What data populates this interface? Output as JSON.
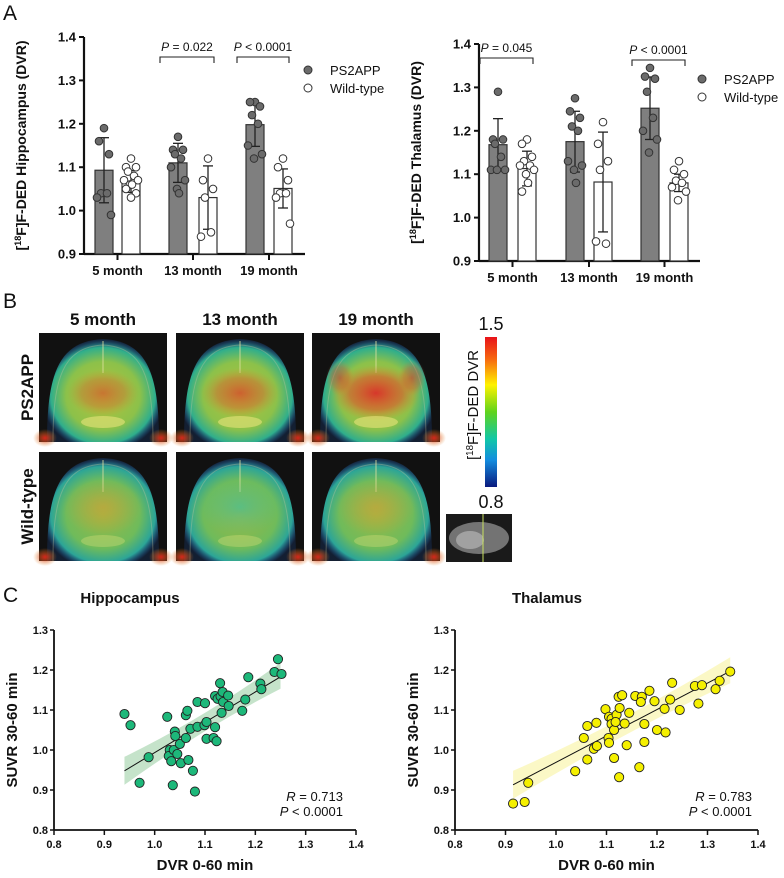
{
  "panel_labels": {
    "a": "A",
    "b": "B",
    "c": "C"
  },
  "chart_data": [
    {
      "type": "bar",
      "panel": "A",
      "ylabel_parts": [
        "[",
        "18",
        "F]F-DED Hippocampus (DVR)"
      ],
      "ylim": [
        0.9,
        1.4
      ],
      "yticks": [
        "0.9",
        "1.0",
        "1.1",
        "1.2",
        "1.3",
        "1.4"
      ],
      "categories": [
        "5 month",
        "13 month",
        "19 month"
      ],
      "legend": {
        "placement": "right",
        "entries": [
          "PS2APP",
          "Wild-type"
        ]
      },
      "series": [
        {
          "name": "PS2APP",
          "color": "#7f7f7f",
          "means": [
            1.093,
            1.11,
            1.198
          ],
          "sd": [
            0.075,
            0.045,
            0.05
          ],
          "points": [
            [
              1.19,
              1.16,
              1.13,
              1.04,
              1.04,
              1.03,
              0.99
            ],
            [
              1.17,
              1.14,
              1.14,
              1.13,
              1.12,
              1.1,
              1.07,
              1.05,
              1.04
            ],
            [
              1.25,
              1.25,
              1.24,
              1.22,
              1.2,
              1.15,
              1.13,
              1.12
            ]
          ]
        },
        {
          "name": "Wild-type",
          "color": "#ffffff",
          "means": [
            1.067,
            1.03,
            1.051
          ],
          "sd": [
            0.025,
            0.073,
            0.045
          ],
          "points": [
            [
              1.12,
              1.1,
              1.1,
              1.09,
              1.08,
              1.07,
              1.07,
              1.06,
              1.06,
              1.05,
              1.04,
              1.03
            ],
            [
              1.12,
              1.07,
              1.05,
              1.03,
              0.95,
              0.94
            ],
            [
              1.12,
              1.1,
              1.07,
              1.04,
              1.04,
              1.03,
              0.97
            ]
          ]
        }
      ],
      "annotations": [
        {
          "category_index": 1,
          "text": "P = 0.022"
        },
        {
          "category_index": 2,
          "text": "P < 0.0001"
        }
      ]
    },
    {
      "type": "bar",
      "panel": "A",
      "ylabel_parts": [
        "[",
        "18",
        "F]F-DED Thalamus (DVR)"
      ],
      "ylim": [
        0.9,
        1.4
      ],
      "yticks": [
        "0.9",
        "1.0",
        "1.1",
        "1.2",
        "1.3",
        "1.4"
      ],
      "categories": [
        "5 month",
        "13 month",
        "19 month"
      ],
      "legend": {
        "placement": "right",
        "entries": [
          "PS2APP",
          "Wild-type"
        ]
      },
      "series": [
        {
          "name": "PS2APP",
          "color": "#7f7f7f",
          "means": [
            1.168,
            1.175,
            1.252
          ],
          "sd": [
            0.06,
            0.07,
            0.072
          ],
          "points": [
            [
              1.29,
              1.18,
              1.18,
              1.17,
              1.14,
              1.11,
              1.11,
              1.11
            ],
            [
              1.275,
              1.245,
              1.23,
              1.21,
              1.2,
              1.13,
              1.12,
              1.11,
              1.08
            ],
            [
              1.345,
              1.325,
              1.32,
              1.29,
              1.23,
              1.2,
              1.18,
              1.15
            ]
          ]
        },
        {
          "name": "Wild-type",
          "color": "#ffffff",
          "means": [
            1.113,
            1.082,
            1.08
          ],
          "sd": [
            0.04,
            0.115,
            0.02
          ],
          "points": [
            [
              1.18,
              1.17,
              1.14,
              1.13,
              1.12,
              1.12,
              1.11,
              1.1,
              1.08,
              1.06
            ],
            [
              1.22,
              1.17,
              1.13,
              1.11,
              0.94,
              0.945
            ],
            [
              1.13,
              1.11,
              1.1,
              1.085,
              1.08,
              1.07,
              1.06,
              1.04
            ]
          ]
        }
      ],
      "annotations": [
        {
          "category_index": 0,
          "text": "P = 0.045"
        },
        {
          "category_index": 2,
          "text": "P < 0.0001"
        }
      ]
    },
    {
      "type": "scatter",
      "panel": "C",
      "title": "Hippocampus",
      "xlabel": "DVR 0-60 min",
      "ylabel": "SUVR 30-60 min",
      "xlim": [
        0.8,
        1.4
      ],
      "ylim": [
        0.8,
        1.3
      ],
      "xticks": [
        "0.8",
        "0.9",
        "1.0",
        "1.1",
        "1.2",
        "1.3",
        "1.4"
      ],
      "yticks": [
        "0.8",
        "0.9",
        "1.0",
        "1.1",
        "1.2",
        "1.3"
      ],
      "color": "#1db87a",
      "band_color": "#bfe0c4",
      "fit": [
        [
          0.94,
          0.948
        ],
        [
          1.25,
          1.183
        ]
      ],
      "stats": {
        "r": "R = 0.713",
        "p": "P < 0.0001"
      },
      "points": [
        [
          0.94,
          1.09
        ],
        [
          0.952,
          1.062
        ],
        [
          0.97,
          0.918
        ],
        [
          0.988,
          0.982
        ],
        [
          1.025,
          1.083
        ],
        [
          1.03,
          1.0
        ],
        [
          1.028,
          0.985
        ],
        [
          1.033,
          0.972
        ],
        [
          1.036,
          0.912
        ],
        [
          1.038,
          1.0
        ],
        [
          1.04,
          1.046
        ],
        [
          1.041,
          1.035
        ],
        [
          1.045,
          0.99
        ],
        [
          1.05,
          1.015
        ],
        [
          1.052,
          0.967
        ],
        [
          1.062,
          1.03
        ],
        [
          1.062,
          1.087
        ],
        [
          1.065,
          1.098
        ],
        [
          1.067,
          0.975
        ],
        [
          1.071,
          1.053
        ],
        [
          1.076,
          0.948
        ],
        [
          1.08,
          0.896
        ],
        [
          1.085,
          1.058
        ],
        [
          1.085,
          1.12
        ],
        [
          1.1,
          1.117
        ],
        [
          1.099,
          1.062
        ],
        [
          1.103,
          1.07
        ],
        [
          1.103,
          1.028
        ],
        [
          1.117,
          1.03
        ],
        [
          1.12,
          1.057
        ],
        [
          1.12,
          1.135
        ],
        [
          1.123,
          1.022
        ],
        [
          1.125,
          1.128
        ],
        [
          1.13,
          1.167
        ],
        [
          1.131,
          1.134
        ],
        [
          1.133,
          1.093
        ],
        [
          1.135,
          1.145
        ],
        [
          1.136,
          1.12
        ],
        [
          1.146,
          1.136
        ],
        [
          1.147,
          1.11
        ],
        [
          1.174,
          1.098
        ],
        [
          1.18,
          1.126
        ],
        [
          1.186,
          1.182
        ],
        [
          1.21,
          1.166
        ],
        [
          1.212,
          1.152
        ],
        [
          1.238,
          1.195
        ],
        [
          1.245,
          1.227
        ],
        [
          1.252,
          1.19
        ]
      ]
    },
    {
      "type": "scatter",
      "panel": "C",
      "title": "Thalamus",
      "xlabel": "DVR 0-60 min",
      "ylabel": "SUVR 30-60 min",
      "xlim": [
        0.8,
        1.4
      ],
      "ylim": [
        0.8,
        1.3
      ],
      "xticks": [
        "0.8",
        "0.9",
        "1.0",
        "1.1",
        "1.2",
        "1.3",
        "1.4"
      ],
      "yticks": [
        "0.8",
        "0.9",
        "1.0",
        "1.1",
        "1.2",
        "1.3"
      ],
      "color": "#f5f000",
      "band_color": "#fbf7c0",
      "fit": [
        [
          0.915,
          0.913
        ],
        [
          1.345,
          1.197
        ]
      ],
      "stats": {
        "r": "R = 0.783",
        "p": "P < 0.0001"
      },
      "points": [
        [
          0.915,
          0.866
        ],
        [
          0.938,
          0.87
        ],
        [
          0.945,
          0.918
        ],
        [
          1.038,
          0.947
        ],
        [
          1.055,
          1.03
        ],
        [
          1.062,
          1.06
        ],
        [
          1.062,
          0.976
        ],
        [
          1.075,
          1.003
        ],
        [
          1.08,
          1.068
        ],
        [
          1.081,
          1.01
        ],
        [
          1.098,
          1.102
        ],
        [
          1.105,
          1.083
        ],
        [
          1.104,
          1.03
        ],
        [
          1.105,
          1.018
        ],
        [
          1.11,
          1.078
        ],
        [
          1.11,
          1.065
        ],
        [
          1.115,
          1.05
        ],
        [
          1.115,
          0.98
        ],
        [
          1.12,
          1.088
        ],
        [
          1.118,
          1.07
        ],
        [
          1.124,
          1.133
        ],
        [
          1.126,
          1.105
        ],
        [
          1.125,
          0.932
        ],
        [
          1.131,
          1.137
        ],
        [
          1.136,
          1.066
        ],
        [
          1.14,
          1.012
        ],
        [
          1.145,
          1.093
        ],
        [
          1.157,
          1.135
        ],
        [
          1.165,
          0.957
        ],
        [
          1.17,
          1.133
        ],
        [
          1.168,
          1.12
        ],
        [
          1.175,
          1.065
        ],
        [
          1.175,
          1.02
        ],
        [
          1.185,
          1.148
        ],
        [
          1.195,
          1.122
        ],
        [
          1.2,
          1.05
        ],
        [
          1.215,
          1.103
        ],
        [
          1.217,
          1.044
        ],
        [
          1.226,
          1.126
        ],
        [
          1.23,
          1.168
        ],
        [
          1.245,
          1.1
        ],
        [
          1.275,
          1.16
        ],
        [
          1.282,
          1.116
        ],
        [
          1.289,
          1.162
        ],
        [
          1.316,
          1.152
        ],
        [
          1.324,
          1.173
        ],
        [
          1.345,
          1.196
        ]
      ]
    }
  ],
  "panel_b": {
    "columns": [
      "5 month",
      "13 month",
      "19 month"
    ],
    "rows": [
      "PS2APP",
      "Wild-type"
    ],
    "colorbar": {
      "label_parts": [
        "[",
        "18",
        "F]F-DED DVR"
      ],
      "max": "1.5",
      "min": "0.8"
    }
  }
}
